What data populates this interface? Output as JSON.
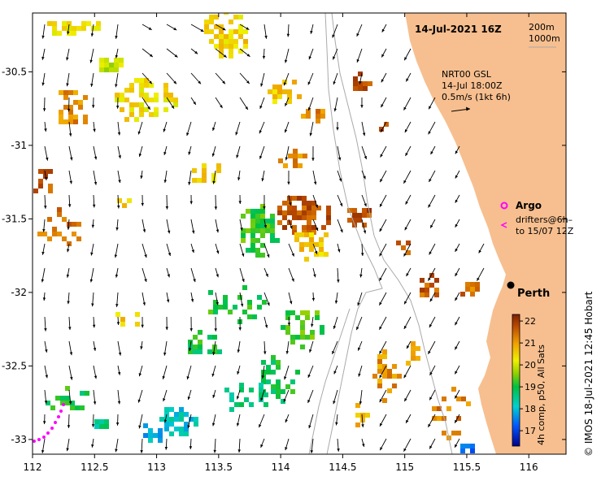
{
  "map": {
    "date_title": "14-Jul-2021 16Z",
    "depth_legend": [
      "200m",
      "1000m"
    ],
    "current_source": "NRT00 GSL",
    "current_time": "14-Jul 18:00Z",
    "arrow_scale": "0.5m/s (1kt 6h)",
    "argo_label": "Argo",
    "drifters_label_1": "drifters@6h–",
    "drifters_label_2": "to 15/07 12Z",
    "city": "Perth",
    "credit": "© IMOS 18-Jul-2021 12:45 Hobart",
    "colorbar_caption": "4h comp, p50, All Sats",
    "x_ticks": [
      "112",
      "112.5",
      "113",
      "113.5",
      "114",
      "114.5",
      "115",
      "115.5",
      "116"
    ],
    "y_ticks": [
      "-30.5",
      "-31",
      "-31.5",
      "-32",
      "-32.5",
      "-33"
    ],
    "colorbar_ticks": [
      "22",
      "21",
      "20",
      "19",
      "18",
      "17"
    ],
    "colors": {
      "land": "#f7bf8f",
      "isobath": "#aaaaaa",
      "argo": "#ff00ff",
      "drifter": "#ff00ff"
    },
    "extent": {
      "lon": [
        112,
        116.3
      ],
      "lat": [
        -33.1,
        -30.1
      ]
    },
    "sst_range": [
      16.3,
      22.3
    ]
  }
}
